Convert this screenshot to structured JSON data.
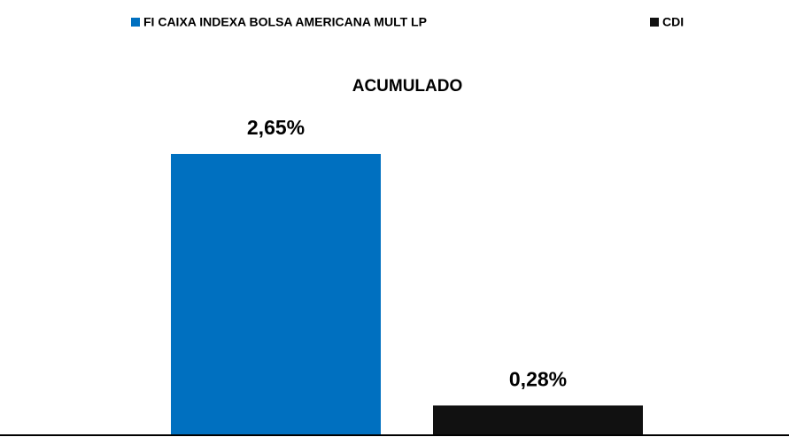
{
  "chart_data": {
    "type": "bar",
    "title": "ACUMULADO",
    "series": [
      {
        "name": "FI CAIXA INDEXA BOLSA AMERICANA MULT LP",
        "color": "#0070c0",
        "values": [
          2.65
        ],
        "value_labels": [
          "2,65%"
        ]
      },
      {
        "name": "CDI",
        "color": "#111111",
        "values": [
          0.28
        ],
        "value_labels": [
          "0,28%"
        ]
      }
    ],
    "legend": "top"
  }
}
